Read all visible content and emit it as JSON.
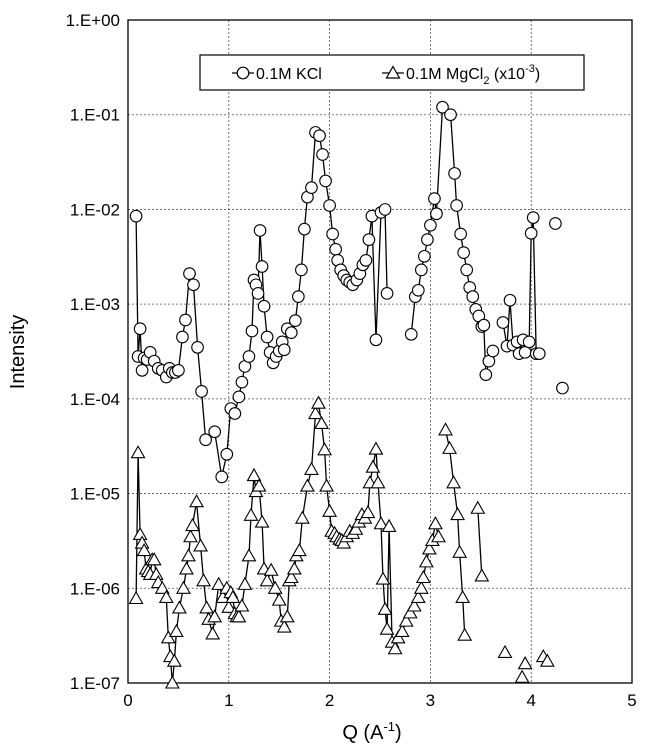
{
  "chart_data": {
    "type": "scatter",
    "xlabel_base": "Q (A",
    "xlabel_sup": "-1",
    "xlabel_end": ")",
    "ylabel": "Intensity",
    "xlim": [
      0,
      5
    ],
    "ylim": [
      1e-07,
      1
    ],
    "y_scale": "log",
    "grid": true,
    "legend_position": "top-center",
    "x_ticks": [
      "0",
      "1",
      "2",
      "3",
      "4",
      "5"
    ],
    "y_ticks": [
      "1.E-07",
      "1.E-06",
      "1.E-05",
      "1.E-04",
      "1.E-03",
      "1.E-02",
      "1.E-01",
      "1.E+00"
    ],
    "series": [
      {
        "name": "0.1M KCl",
        "marker": "circle",
        "connected": [
          [
            [
              0.08,
              0.0085
            ],
            [
              0.1,
              0.00028
            ],
            [
              0.12,
              0.00055
            ],
            [
              0.14,
              0.0002
            ],
            [
              0.16,
              0.00027
            ],
            [
              0.19,
              0.00026
            ],
            [
              0.22,
              0.00031
            ],
            [
              0.26,
              0.00025
            ],
            [
              0.3,
              0.00021
            ],
            [
              0.34,
              0.0002
            ],
            [
              0.38,
              0.00017
            ],
            [
              0.41,
              0.00021
            ],
            [
              0.44,
              0.00019
            ],
            [
              0.47,
              0.00019
            ],
            [
              0.5,
              0.0002
            ],
            [
              0.54,
              0.00045
            ],
            [
              0.57,
              0.00068
            ],
            [
              0.61,
              0.0021
            ],
            [
              0.65,
              0.0016
            ],
            [
              0.69,
              0.00035
            ],
            [
              0.73,
              0.00012
            ],
            [
              0.77,
              3.7e-05
            ],
            [
              0.86,
              4.5e-05
            ],
            [
              0.93,
              1.5e-05
            ],
            [
              0.98,
              2.6e-05
            ],
            [
              1.02,
              7.9e-05
            ],
            [
              1.06,
              7e-05
            ],
            [
              1.1,
              0.000105
            ],
            [
              1.13,
              0.00015
            ],
            [
              1.16,
              0.00022
            ],
            [
              1.2,
              0.00028
            ],
            [
              1.23,
              0.00052
            ],
            [
              1.25,
              0.0018
            ],
            [
              1.27,
              0.0016
            ],
            [
              1.29,
              0.0013
            ],
            [
              1.31,
              0.006
            ],
            [
              1.33,
              0.0025
            ],
            [
              1.35,
              0.00095
            ],
            [
              1.38,
              0.00045
            ],
            [
              1.41,
              0.00031
            ],
            [
              1.44,
              0.00024
            ],
            [
              1.47,
              0.00028
            ],
            [
              1.5,
              0.00032
            ],
            [
              1.53,
              0.0004
            ],
            [
              1.55,
              0.00033
            ],
            [
              1.58,
              0.00055
            ],
            [
              1.62,
              0.0005
            ],
            [
              1.66,
              0.00067
            ],
            [
              1.69,
              0.0012
            ],
            [
              1.72,
              0.0023
            ],
            [
              1.75,
              0.0062
            ],
            [
              1.78,
              0.0135
            ],
            [
              1.82,
              0.017
            ],
            [
              1.86,
              0.065
            ],
            [
              1.9,
              0.06
            ],
            [
              1.93,
              0.038
            ],
            [
              1.96,
              0.02
            ],
            [
              2.0,
              0.011
            ],
            [
              2.03,
              0.0055
            ],
            [
              2.06,
              0.0038
            ],
            [
              2.08,
              0.0029
            ],
            [
              2.11,
              0.0023
            ],
            [
              2.14,
              0.002
            ],
            [
              2.17,
              0.0018
            ],
            [
              2.2,
              0.0017
            ],
            [
              2.23,
              0.0016
            ],
            [
              2.27,
              0.0018
            ],
            [
              2.3,
              0.0021
            ],
            [
              2.33,
              0.0026
            ],
            [
              2.36,
              0.0029
            ],
            [
              2.39,
              0.0048
            ],
            [
              2.42,
              0.0085
            ],
            [
              2.46,
              0.00042
            ],
            [
              2.51,
              0.0093
            ],
            [
              2.55,
              0.01
            ],
            [
              2.57,
              0.0013
            ]
          ],
          [
            [
              2.81,
              0.00048
            ],
            [
              2.85,
              0.0012
            ],
            [
              2.88,
              0.0014
            ],
            [
              2.91,
              0.0023
            ],
            [
              2.94,
              0.0032
            ],
            [
              2.97,
              0.0048
            ],
            [
              3.0,
              0.0068
            ],
            [
              3.04,
              0.013
            ],
            [
              3.06,
              0.009
            ],
            [
              3.12,
              0.12
            ],
            [
              3.2,
              0.1
            ],
            [
              3.24,
              0.024
            ],
            [
              3.26,
              0.011
            ],
            [
              3.3,
              0.0055
            ],
            [
              3.33,
              0.0035
            ],
            [
              3.36,
              0.0023
            ],
            [
              3.39,
              0.0015
            ],
            [
              3.42,
              0.0012
            ],
            [
              3.45,
              0.00088
            ],
            [
              3.48,
              0.00075
            ],
            [
              3.51,
              0.00058
            ],
            [
              3.53,
              0.0006
            ],
            [
              3.55,
              0.00018
            ],
            [
              3.58,
              0.00025
            ],
            [
              3.62,
              0.00032
            ]
          ],
          [
            [
              3.72,
              0.00064
            ],
            [
              3.76,
              0.00036
            ],
            [
              3.79,
              0.0011
            ],
            [
              3.82,
              0.00037
            ],
            [
              3.86,
              0.0004
            ],
            [
              3.88,
              0.0003
            ],
            [
              3.92,
              0.00042
            ],
            [
              3.94,
              0.00031
            ],
            [
              3.98,
              0.0004
            ],
            [
              4.0,
              0.0056
            ],
            [
              4.02,
              0.0082
            ],
            [
              4.05,
              0.0003
            ],
            [
              4.08,
              0.0003
            ]
          ]
        ],
        "isolated": [
          [
            4.24,
            0.0071
          ],
          [
            4.31,
            0.00013
          ]
        ]
      },
      {
        "name": "0.1M MgCl",
        "name_sub": "2",
        "name_suffix": " (x10",
        "name_sup": "-3",
        "name_end": ")",
        "marker": "triangle",
        "connected": [
          [
            [
              0.08,
              7.8e-07
            ],
            [
              0.1,
              2.7e-05
            ],
            [
              0.12,
              3.7e-06
            ],
            [
              0.14,
              3e-06
            ],
            [
              0.16,
              2.5e-06
            ],
            [
              0.18,
              1.6e-06
            ],
            [
              0.2,
              1.5e-06
            ],
            [
              0.22,
              1.4e-06
            ],
            [
              0.24,
              2e-06
            ],
            [
              0.26,
              2e-06
            ],
            [
              0.28,
              1.4e-06
            ],
            [
              0.3,
              1.15e-06
            ],
            [
              0.34,
              1e-06
            ],
            [
              0.38,
              8e-07
            ],
            [
              0.4,
              3e-07
            ],
            [
              0.42,
              1.9e-07
            ],
            [
              0.44,
              1e-07
            ],
            [
              0.46,
              1.7e-07
            ],
            [
              0.48,
              3.5e-07
            ],
            [
              0.51,
              6.2e-07
            ],
            [
              0.55,
              1e-06
            ],
            [
              0.58,
              1.6e-06
            ],
            [
              0.6,
              2.2e-06
            ],
            [
              0.62,
              3.5e-06
            ],
            [
              0.64,
              4.6e-06
            ],
            [
              0.68,
              8.2e-06
            ],
            [
              0.72,
              2.8e-06
            ],
            [
              0.75,
              1.2e-06
            ],
            [
              0.78,
              6.2e-07
            ],
            [
              0.8,
              4.7e-07
            ],
            [
              0.84,
              3.3e-07
            ],
            [
              0.86,
              5e-07
            ],
            [
              0.9,
              1.1e-06
            ],
            [
              0.94,
              8e-07
            ],
            [
              0.98,
              1e-06
            ],
            [
              1.0,
              6.3e-07
            ],
            [
              1.02,
              9e-07
            ],
            [
              1.04,
              8e-07
            ],
            [
              1.06,
              5.4e-07
            ],
            [
              1.08,
              5e-07
            ],
            [
              1.1,
              5e-07
            ],
            [
              1.13,
              6.5e-07
            ],
            [
              1.16,
              1.1e-06
            ],
            [
              1.2,
              2.2e-06
            ],
            [
              1.22,
              5.9e-06
            ],
            [
              1.25,
              1.55e-05
            ],
            [
              1.27,
              1.05e-05
            ],
            [
              1.3,
              1.2e-05
            ],
            [
              1.33,
              5e-06
            ],
            [
              1.35,
              1.6e-06
            ],
            [
              1.38,
              1.2e-06
            ],
            [
              1.42,
              1.55e-06
            ],
            [
              1.46,
              1e-06
            ],
            [
              1.5,
              7.5e-07
            ],
            [
              1.52,
              4.5e-07
            ],
            [
              1.55,
              3.9e-07
            ],
            [
              1.58,
              5e-07
            ],
            [
              1.6,
              1.2e-06
            ],
            [
              1.62,
              1.3e-06
            ],
            [
              1.65,
              1.6e-06
            ],
            [
              1.67,
              2.2e-06
            ],
            [
              1.7,
              2.5e-06
            ],
            [
              1.73,
              5.5e-06
            ],
            [
              1.78,
              1.2e-05
            ],
            [
              1.82,
              1.8e-05
            ],
            [
              1.86,
              7e-05
            ],
            [
              1.89,
              9e-05
            ],
            [
              1.92,
              5.5e-05
            ],
            [
              1.95,
              2.9e-05
            ],
            [
              1.97,
              1.2e-05
            ],
            [
              2.0,
              6.5e-06
            ],
            [
              2.02,
              4e-06
            ],
            [
              2.05,
              3.8e-06
            ],
            [
              2.07,
              3.5e-06
            ],
            [
              2.1,
              3.3e-06
            ],
            [
              2.12,
              3.2e-06
            ],
            [
              2.14,
              3e-06
            ],
            [
              2.17,
              3.5e-06
            ],
            [
              2.2,
              4e-06
            ],
            [
              2.23,
              3.8e-06
            ],
            [
              2.26,
              4.2e-06
            ],
            [
              2.29,
              5e-06
            ],
            [
              2.32,
              6e-06
            ],
            [
              2.35,
              5.5e-06
            ],
            [
              2.38,
              6.3e-06
            ],
            [
              2.4,
              1.3e-05
            ],
            [
              2.43,
              1.9e-05
            ],
            [
              2.46,
              2.95e-05
            ],
            [
              2.48,
              1.3e-05
            ],
            [
              2.51,
              4.8e-06
            ],
            [
              2.53,
              1.25e-06
            ],
            [
              2.55,
              6e-07
            ],
            [
              2.57,
              3.7e-07
            ],
            [
              2.59,
              4.5e-06
            ],
            [
              2.62,
              2.7e-07
            ],
            [
              2.65,
              2.3e-07
            ],
            [
              2.68,
              3e-07
            ],
            [
              2.72,
              3.5e-07
            ],
            [
              2.76,
              4.5e-07
            ],
            [
              2.8,
              5.5e-07
            ],
            [
              2.84,
              6.5e-07
            ],
            [
              2.88,
              8e-07
            ],
            [
              2.91,
              1e-06
            ],
            [
              2.93,
              1.3e-06
            ],
            [
              2.96,
              1.9e-06
            ],
            [
              2.99,
              2.6e-06
            ],
            [
              3.02,
              3.2e-06
            ],
            [
              3.05,
              4.8e-06
            ],
            [
              3.08,
              3.5e-06
            ]
          ],
          [
            [
              3.15,
              4.7e-05
            ],
            [
              3.19,
              3e-05
            ],
            [
              3.23,
              1.3e-05
            ],
            [
              3.27,
              6e-06
            ],
            [
              3.29,
              2.4e-06
            ],
            [
              3.32,
              8e-07
            ],
            [
              3.34,
              3.2e-07
            ]
          ],
          [
            [
              3.47,
              7e-06
            ],
            [
              3.51,
              1.35e-06
            ]
          ]
        ],
        "isolated": [
          [
            3.74,
            2.1e-07
          ],
          [
            3.91,
            1.15e-07
          ],
          [
            3.94,
            1.6e-07
          ],
          [
            4.12,
            1.9e-07
          ],
          [
            4.16,
            1.7e-07
          ]
        ]
      }
    ]
  }
}
